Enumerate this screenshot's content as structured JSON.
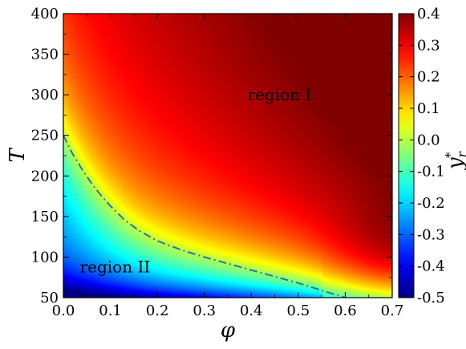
{
  "chart_data": {
    "type": "heatmap",
    "xlabel": "φ",
    "ylabel": "T",
    "colorbar_label": "y",
    "colorbar_label_sub": "r",
    "colorbar_label_sup": "*",
    "xlim": [
      0.0,
      0.7
    ],
    "ylim": [
      50,
      400
    ],
    "x_ticks": [
      0.0,
      0.1,
      0.2,
      0.3,
      0.4,
      0.5,
      0.6,
      0.7
    ],
    "x_tick_labels": [
      "0.0",
      "0.1",
      "0.2",
      "0.3",
      "0.4",
      "0.5",
      "0.6",
      "0.7"
    ],
    "y_ticks": [
      50,
      100,
      150,
      200,
      250,
      300,
      350,
      400
    ],
    "y_tick_labels": [
      "50",
      "100",
      "150",
      "200",
      "250",
      "300",
      "350",
      "400"
    ],
    "colorbar": {
      "range": [
        -0.5,
        0.4
      ],
      "ticks": [
        0.4,
        0.3,
        0.2,
        0.1,
        0.0,
        -0.1,
        -0.2,
        -0.3,
        -0.4,
        -0.5
      ],
      "tick_labels": [
        "0.4",
        "0.3",
        "0.2",
        "0.1",
        "0.0",
        "-0.1",
        "-0.2",
        "-0.3",
        "-0.4",
        "-0.5"
      ],
      "colormap": "jet"
    },
    "boundary_curve": {
      "style": "dash-dot",
      "color": "#1f77b4",
      "x": [
        0.0,
        0.01,
        0.02,
        0.04,
        0.06,
        0.08,
        0.1,
        0.13,
        0.16,
        0.2,
        0.25,
        0.3,
        0.35,
        0.4,
        0.45,
        0.5,
        0.55,
        0.6
      ],
      "y": [
        250,
        238,
        227,
        208,
        191,
        176,
        163,
        146,
        133,
        120,
        109,
        100,
        92,
        84,
        76,
        68,
        59,
        50
      ]
    },
    "annotations": [
      {
        "text": "region I",
        "x": 0.46,
        "y": 300
      },
      {
        "text": "region II",
        "x": 0.11,
        "y": 88
      }
    ]
  }
}
